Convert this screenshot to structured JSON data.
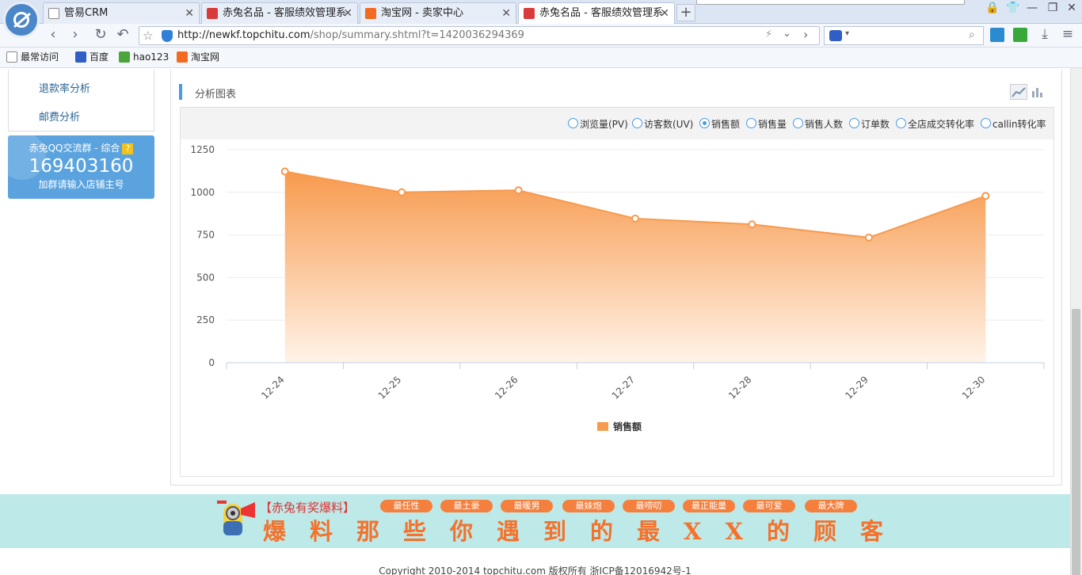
{
  "browser": {
    "tabs": [
      {
        "label": "管易CRM",
        "favicon": "document-icon",
        "active": false
      },
      {
        "label": "赤兔名品 - 客服绩效管理系",
        "favicon": "chitu-favicon",
        "active": false
      },
      {
        "label": "淘宝网 - 卖家中心",
        "favicon": "taobao-favicon",
        "active": false
      },
      {
        "label": "赤兔名品 - 客服绩效管理系",
        "favicon": "chitu-favicon",
        "active": true
      }
    ],
    "new_tab": "+",
    "url_host": "http://newkf.topchitu.com",
    "url_path": "/shop/summary.shtml?t=1420036294369",
    "bookmarks": [
      {
        "label": "最常访问",
        "icon": "page-icon"
      },
      {
        "label": "百度",
        "icon": "baidu-icon"
      },
      {
        "label": "hao123",
        "icon": "hao123-icon"
      },
      {
        "label": "淘宝网",
        "icon": "taobao-icon"
      }
    ]
  },
  "sidebar": {
    "links": [
      "退款率分析",
      "邮费分析"
    ],
    "qq_group": {
      "title": "赤兔QQ交流群 - 综合",
      "help": "?",
      "number": "169403160",
      "note": "加群请输入店铺主号"
    }
  },
  "panel": {
    "title": "分析图表",
    "metrics": [
      {
        "label": "浏览量(PV)",
        "selected": false
      },
      {
        "label": "访客数(UV)",
        "selected": false
      },
      {
        "label": "销售额",
        "selected": true
      },
      {
        "label": "销售量",
        "selected": false
      },
      {
        "label": "销售人数",
        "selected": false
      },
      {
        "label": "订单数",
        "selected": false
      },
      {
        "label": "全店成交转化率",
        "selected": false
      },
      {
        "label": "callin转化率",
        "selected": false
      }
    ]
  },
  "chart_data": {
    "type": "area",
    "categories": [
      "12-24",
      "12-25",
      "12-26",
      "12-27",
      "12-28",
      "12-29",
      "12-30"
    ],
    "series": [
      {
        "name": "销售额",
        "values": [
          1122,
          1000,
          1012,
          846,
          812,
          734,
          979
        ],
        "color": "#f79a4e"
      }
    ],
    "ylim": [
      0,
      1250
    ],
    "yticks": [
      0,
      250,
      500,
      750,
      1000,
      1250
    ],
    "grid": true,
    "legend": "bottom"
  },
  "banner": {
    "headline": "【赤兔有奖爆料】",
    "tags": [
      "最任性",
      "最土豪",
      "最暖男",
      "最妹炮",
      "最唠叨",
      "最正能量",
      "最可爱",
      "最大牌"
    ],
    "slogan": "爆料那些你遇到的最XX的顾客"
  },
  "footer": {
    "copyright": "Copyright 2010-2014 topchitu.com 版权所有 浙ICP备12016942号-1"
  }
}
